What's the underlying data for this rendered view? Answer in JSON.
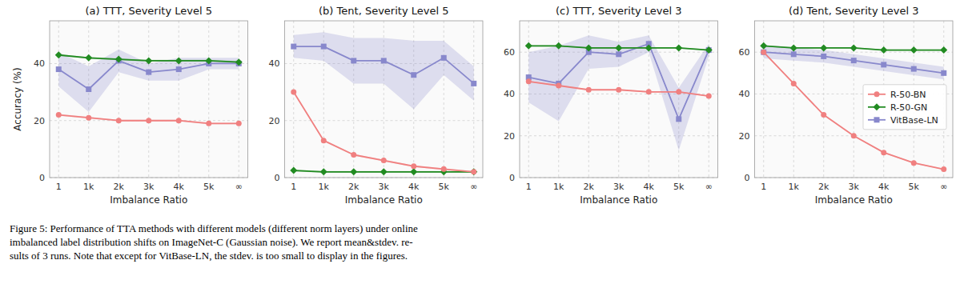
{
  "chart_data": [
    {
      "type": "line",
      "title": "(a) TTT, Severity Level 5",
      "categories": [
        "1",
        "1k",
        "2k",
        "3k",
        "4k",
        "5k",
        "∞"
      ],
      "xlabel": "Imbalance Ratio",
      "ylabel": "Accuracy (%)",
      "ylim": [
        0,
        55
      ],
      "yticks": [
        0,
        20,
        40
      ],
      "grid": true,
      "series": [
        {
          "color": "#f08080",
          "marker": "circle",
          "values": [
            22,
            21,
            20,
            20,
            20,
            19,
            19
          ],
          "std": [
            0.3,
            0.3,
            0.3,
            0.3,
            0.3,
            0.3,
            0.3
          ]
        },
        {
          "color": "#228B22",
          "marker": "diamond",
          "values": [
            43,
            42,
            41.5,
            41,
            41,
            41,
            40.5
          ],
          "std": [
            0.3,
            0.3,
            0.3,
            0.3,
            0.3,
            0.3,
            0.3
          ]
        },
        {
          "color": "#8888cc",
          "marker": "square",
          "values": [
            38,
            31,
            41,
            37,
            38,
            40,
            40
          ],
          "std": [
            6,
            8,
            4,
            3,
            4,
            2,
            2
          ]
        }
      ]
    },
    {
      "type": "line",
      "title": "(b) Tent, Severity Level 5",
      "categories": [
        "1",
        "1k",
        "2k",
        "3k",
        "4k",
        "5k",
        "∞"
      ],
      "xlabel": "Imbalance Ratio",
      "ylim": [
        0,
        55
      ],
      "yticks": [
        0,
        20,
        40
      ],
      "grid": true,
      "series": [
        {
          "color": "#f08080",
          "marker": "circle",
          "values": [
            30,
            13,
            8,
            6,
            4,
            3,
            2
          ],
          "std": [
            0.3,
            0.3,
            0.3,
            0.3,
            0.3,
            0.3,
            0.3
          ]
        },
        {
          "color": "#228B22",
          "marker": "diamond",
          "values": [
            2.5,
            2,
            2,
            2,
            2,
            2,
            2
          ],
          "std": [
            0.3,
            0.3,
            0.3,
            0.3,
            0.3,
            0.3,
            0.3
          ]
        },
        {
          "color": "#8888cc",
          "marker": "square",
          "values": [
            46,
            46,
            41,
            41,
            36,
            42,
            33
          ],
          "std": [
            4,
            5,
            8,
            8,
            12,
            6,
            6
          ]
        }
      ]
    },
    {
      "type": "line",
      "title": "(c) TTT, Severity Level 3",
      "categories": [
        "1",
        "1k",
        "2k",
        "3k",
        "4k",
        "5k",
        "∞"
      ],
      "xlabel": "Imbalance Ratio",
      "ylim": [
        0,
        75
      ],
      "yticks": [
        0,
        20,
        40,
        60
      ],
      "grid": true,
      "series": [
        {
          "color": "#f08080",
          "marker": "circle",
          "values": [
            46,
            44,
            42,
            42,
            41,
            41,
            39
          ],
          "std": [
            0.3,
            0.3,
            0.3,
            0.3,
            0.3,
            0.3,
            0.3
          ]
        },
        {
          "color": "#228B22",
          "marker": "diamond",
          "values": [
            63,
            63,
            62,
            62,
            62,
            62,
            61
          ],
          "std": [
            0.3,
            0.3,
            0.3,
            0.3,
            0.3,
            0.3,
            0.3
          ]
        },
        {
          "color": "#8888cc",
          "marker": "square",
          "values": [
            48,
            45,
            60,
            59,
            64,
            28,
            61
          ],
          "std": [
            12,
            18,
            8,
            6,
            4,
            15,
            3
          ]
        }
      ]
    },
    {
      "type": "line",
      "title": "(d) Tent, Severity Level 3",
      "categories": [
        "1",
        "1k",
        "2k",
        "3k",
        "4k",
        "5k",
        "∞"
      ],
      "xlabel": "Imbalance Ratio",
      "ylim": [
        0,
        75
      ],
      "yticks": [
        0,
        20,
        40,
        60
      ],
      "grid": true,
      "legend": "right",
      "series": [
        {
          "name": "R-50-BN",
          "color": "#f08080",
          "marker": "circle",
          "values": [
            60,
            45,
            30,
            20,
            12,
            7,
            4
          ],
          "std": [
            0.3,
            0.3,
            0.3,
            0.3,
            0.3,
            0.3,
            0.3
          ]
        },
        {
          "name": "R-50-GN",
          "color": "#228B22",
          "marker": "diamond",
          "values": [
            63,
            62,
            62,
            62,
            61,
            61,
            61
          ],
          "std": [
            0.3,
            0.3,
            0.3,
            0.3,
            0.3,
            0.3,
            0.3
          ]
        },
        {
          "name": "VitBase-LN",
          "color": "#8888cc",
          "marker": "square",
          "values": [
            60,
            59,
            58,
            56,
            54,
            52,
            50
          ],
          "std": [
            3,
            3,
            3,
            3,
            3,
            3,
            3
          ]
        }
      ]
    }
  ],
  "caption": [
    "Figure 5: Performance of TTA methods with different models (different norm layers) under online",
    "imbalanced label distribution shifts on ImageNet-C (Gaussian noise).  We report mean&stdev.  re-",
    "sults of 3 runs. Note that except for VitBase-LN, the stdev. is too small to display in the figures."
  ]
}
